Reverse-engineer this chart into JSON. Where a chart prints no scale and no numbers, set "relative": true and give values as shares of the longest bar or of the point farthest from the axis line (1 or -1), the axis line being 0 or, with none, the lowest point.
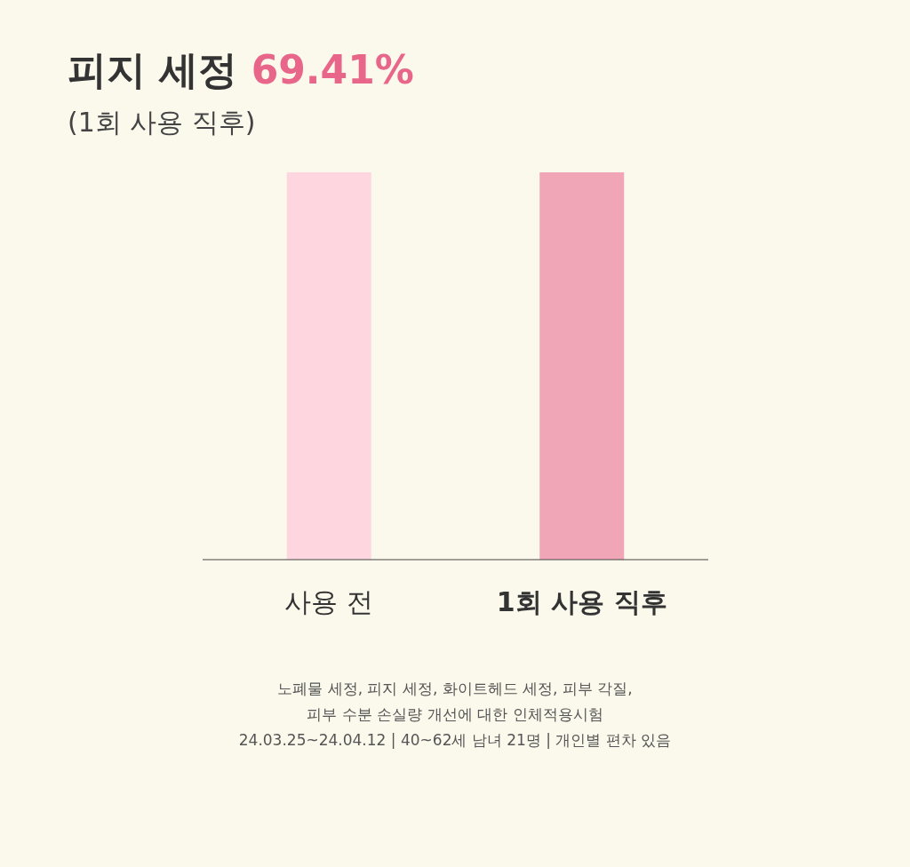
{
  "chart_data": {
    "type": "bar",
    "title": "피지 세정 69.41%",
    "subtitle": "(1회 사용 직후)",
    "categories": [
      "사용 전",
      "1회 사용 직후"
    ],
    "values": [
      1,
      1
    ],
    "colors": [
      "#fdd6df",
      "#f0a6b7"
    ],
    "relative": true,
    "annotations": [
      "노폐물 세정, 피지 세정, 화이트헤드 세정, 피부 각질,",
      "피부 수분 손실량 개선에 대한 인체적용시험",
      "24.03.25~24.04.12 | 40~62세 남녀 21명 | 개인별 편차 있음"
    ]
  }
}
